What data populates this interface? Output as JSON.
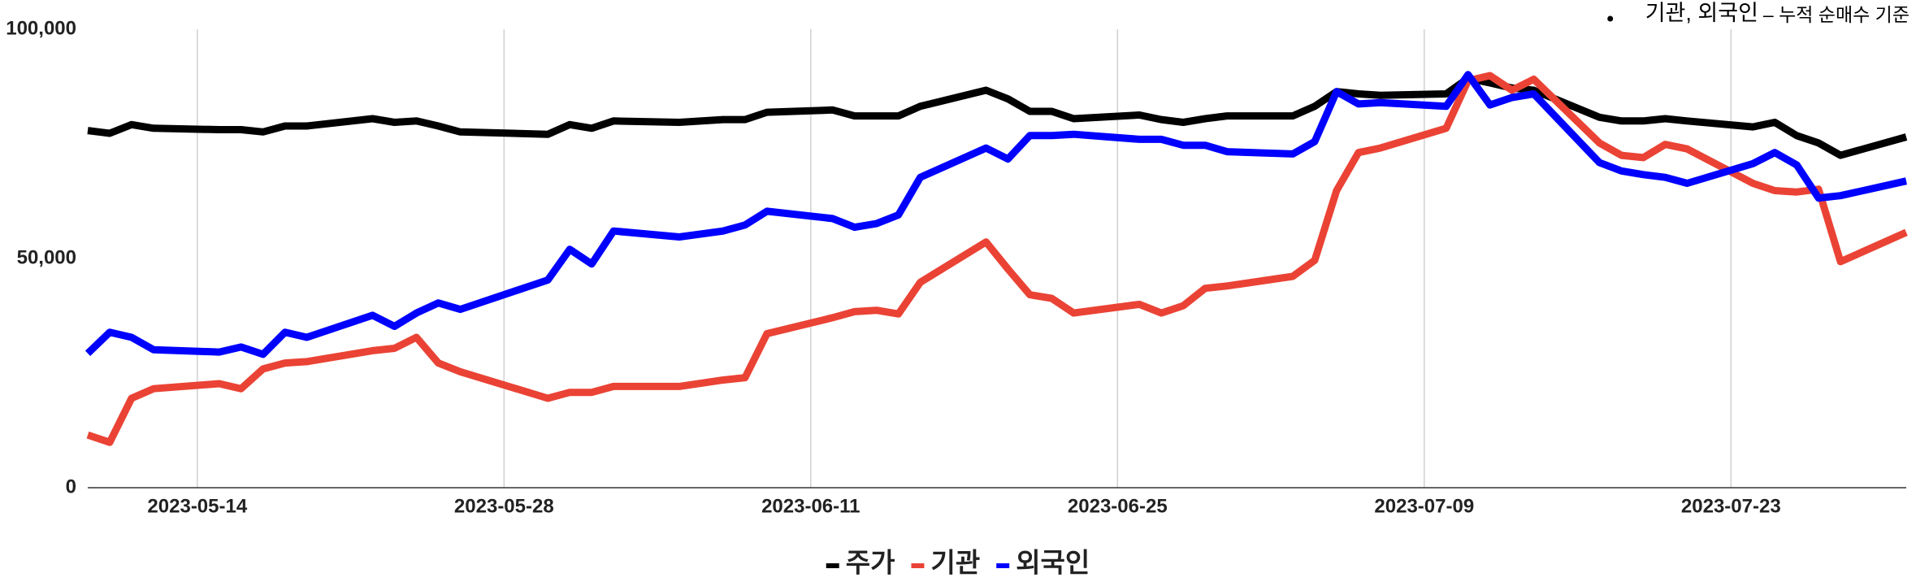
{
  "chart_data": {
    "type": "line",
    "annotation": "기관, 외국인",
    "annotation_note": "– 누적 순매수 기준",
    "x": [
      "2023-05-09",
      "2023-05-10",
      "2023-05-11",
      "2023-05-12",
      "2023-05-15",
      "2023-05-16",
      "2023-05-17",
      "2023-05-18",
      "2023-05-19",
      "2023-05-22",
      "2023-05-23",
      "2023-05-24",
      "2023-05-25",
      "2023-05-26",
      "2023-05-30",
      "2023-05-31",
      "2023-06-01",
      "2023-06-02",
      "2023-06-05",
      "2023-06-07",
      "2023-06-08",
      "2023-06-09",
      "2023-06-12",
      "2023-06-13",
      "2023-06-14",
      "2023-06-15",
      "2023-06-16",
      "2023-06-19",
      "2023-06-20",
      "2023-06-21",
      "2023-06-22",
      "2023-06-23",
      "2023-06-26",
      "2023-06-27",
      "2023-06-28",
      "2023-06-29",
      "2023-06-30",
      "2023-07-03",
      "2023-07-04",
      "2023-07-05",
      "2023-07-06",
      "2023-07-07",
      "2023-07-10",
      "2023-07-11",
      "2023-07-12",
      "2023-07-13",
      "2023-07-14",
      "2023-07-17",
      "2023-07-18",
      "2023-07-19",
      "2023-07-20",
      "2023-07-21",
      "2023-07-24",
      "2023-07-25",
      "2023-07-26",
      "2023-07-27",
      "2023-07-28",
      "2023-07-31"
    ],
    "series": [
      {
        "name": "주가",
        "color": "#000000",
        "values": [
          77900,
          77300,
          79200,
          78400,
          78100,
          78100,
          77600,
          78900,
          78900,
          80500,
          79700,
          80000,
          78900,
          77600,
          77100,
          79200,
          78400,
          80000,
          79700,
          80300,
          80300,
          81900,
          82400,
          81100,
          81100,
          81100,
          83200,
          86700,
          84800,
          82100,
          82100,
          80500,
          81300,
          80300,
          79700,
          80500,
          81100,
          81100,
          83200,
          86400,
          85900,
          85600,
          85900,
          89300,
          88300,
          87200,
          86700,
          80800,
          80000,
          80000,
          80500,
          80000,
          78700,
          79700,
          76800,
          75200,
          72500,
          76500
        ]
      },
      {
        "name": "기관",
        "color": "#ea4335",
        "values": [
          11500,
          9900,
          19500,
          21600,
          22700,
          21600,
          25900,
          27200,
          27500,
          29900,
          30400,
          32800,
          27200,
          25300,
          19500,
          20800,
          20800,
          22100,
          22100,
          23500,
          24000,
          33600,
          37100,
          38400,
          38700,
          37900,
          44800,
          53600,
          47700,
          42100,
          41300,
          38100,
          40000,
          38100,
          39700,
          43500,
          44000,
          46100,
          49600,
          64800,
          73100,
          74100,
          78400,
          88800,
          89900,
          86700,
          89100,
          75200,
          72500,
          72000,
          74900,
          73900,
          66400,
          64800,
          64500,
          65100,
          49300,
          55700
        ]
      },
      {
        "name": "외국인",
        "color": "#0000ff",
        "values": [
          29300,
          33900,
          32800,
          30100,
          29600,
          30700,
          29100,
          33900,
          32800,
          37600,
          35200,
          38100,
          40300,
          38900,
          45300,
          52000,
          48800,
          56000,
          54700,
          56000,
          57300,
          60300,
          58700,
          56800,
          57600,
          59500,
          67700,
          74100,
          71700,
          76800,
          76800,
          77100,
          76000,
          76000,
          74700,
          74700,
          73300,
          72800,
          75500,
          86400,
          83700,
          84000,
          83200,
          90100,
          83500,
          85100,
          85900,
          70900,
          69100,
          68300,
          67700,
          66400,
          70700,
          73100,
          70400,
          63200,
          63700,
          66900
        ]
      }
    ],
    "xlim": [
      "2023-05-09",
      "2023-07-31"
    ],
    "xticks": [
      "2023-05-14",
      "2023-05-28",
      "2023-06-11",
      "2023-06-25",
      "2023-07-09",
      "2023-07-23"
    ],
    "ylim": [
      0,
      100000
    ],
    "yticks": [
      0,
      {
        "value": 50000,
        "label": "50,000"
      },
      {
        "value": 100000,
        "label": "100,000"
      }
    ],
    "grid": "x"
  }
}
